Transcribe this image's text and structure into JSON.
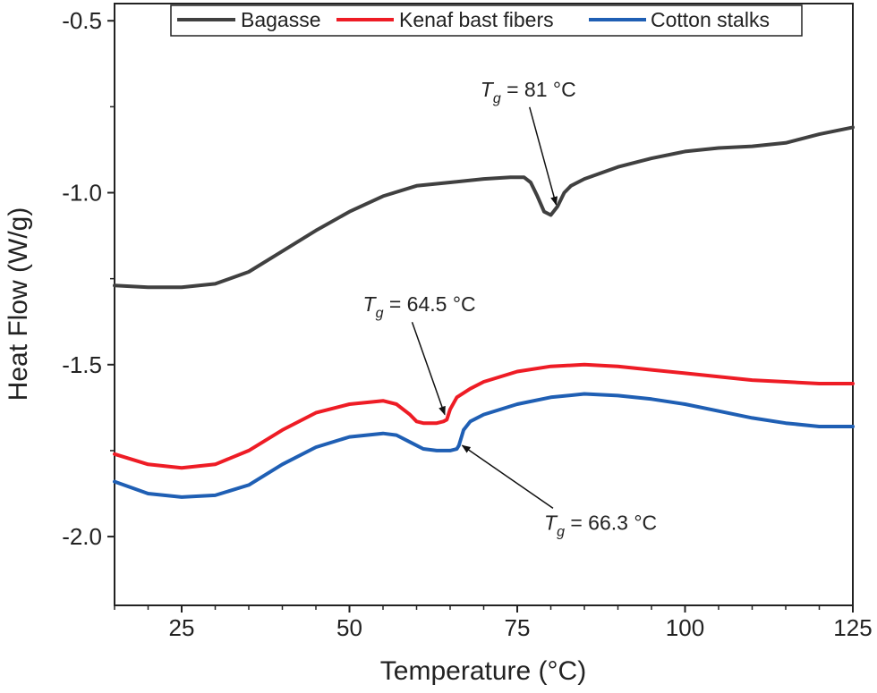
{
  "chart_data": {
    "type": "line",
    "title": "",
    "xlabel": "Temperature (°C)",
    "ylabel": "Heat Flow (W/g)",
    "xlim": [
      15,
      125
    ],
    "ylim": [
      -2.2,
      -0.45
    ],
    "xticks": [
      25,
      50,
      75,
      100,
      125
    ],
    "xtick_labels": [
      "25",
      "50",
      "75",
      "100",
      "125"
    ],
    "yticks": [
      -0.5,
      -1.0,
      -1.5,
      -2.0
    ],
    "ytick_labels": [
      "-0.5",
      "-1.0",
      "-1.5",
      "-2.0"
    ],
    "grid": false,
    "legend_position": "top",
    "series": [
      {
        "name": "Bagasse",
        "color": "#404040",
        "x": [
          15,
          20,
          25,
          30,
          35,
          40,
          45,
          50,
          55,
          60,
          65,
          70,
          74,
          76,
          77,
          78,
          79,
          80,
          81,
          82,
          83,
          85,
          90,
          95,
          100,
          105,
          110,
          115,
          120,
          125
        ],
        "y": [
          -1.27,
          -1.275,
          -1.275,
          -1.265,
          -1.23,
          -1.17,
          -1.11,
          -1.055,
          -1.01,
          -0.98,
          -0.97,
          -0.96,
          -0.955,
          -0.955,
          -0.97,
          -1.01,
          -1.055,
          -1.065,
          -1.04,
          -1.0,
          -0.98,
          -0.96,
          -0.925,
          -0.9,
          -0.88,
          -0.87,
          -0.865,
          -0.855,
          -0.83,
          -0.81
        ]
      },
      {
        "name": "Kenaf bast fibers",
        "color": "#ee1c25",
        "x": [
          15,
          20,
          25,
          30,
          35,
          40,
          45,
          50,
          55,
          57,
          59,
          60,
          61,
          62,
          63,
          64,
          64.5,
          65,
          66,
          68,
          70,
          75,
          80,
          85,
          90,
          95,
          100,
          105,
          110,
          115,
          120,
          125
        ],
        "y": [
          -1.76,
          -1.79,
          -1.8,
          -1.79,
          -1.75,
          -1.69,
          -1.64,
          -1.615,
          -1.605,
          -1.615,
          -1.645,
          -1.665,
          -1.67,
          -1.67,
          -1.67,
          -1.665,
          -1.66,
          -1.63,
          -1.595,
          -1.57,
          -1.55,
          -1.52,
          -1.505,
          -1.5,
          -1.505,
          -1.515,
          -1.525,
          -1.535,
          -1.545,
          -1.55,
          -1.555,
          -1.555
        ]
      },
      {
        "name": "Cotton stalks",
        "color": "#1f5fb4",
        "x": [
          15,
          20,
          25,
          30,
          35,
          40,
          45,
          50,
          55,
          57,
          59,
          61,
          63,
          65,
          66,
          66.3,
          67,
          68,
          70,
          75,
          80,
          85,
          90,
          95,
          100,
          105,
          110,
          115,
          120,
          125
        ],
        "y": [
          -1.84,
          -1.875,
          -1.885,
          -1.88,
          -1.85,
          -1.79,
          -1.74,
          -1.71,
          -1.7,
          -1.705,
          -1.725,
          -1.745,
          -1.75,
          -1.75,
          -1.745,
          -1.735,
          -1.69,
          -1.665,
          -1.645,
          -1.615,
          -1.595,
          -1.585,
          -1.59,
          -1.6,
          -1.615,
          -1.635,
          -1.655,
          -1.67,
          -1.68,
          -1.68
        ]
      }
    ],
    "annotations": [
      {
        "label": "T",
        "sub": "g",
        "text": " = 81 °C",
        "target_x": 80.8,
        "target_y": -1.035,
        "text_x": 69.5,
        "text_y": -0.72
      },
      {
        "label": "T",
        "sub": "g",
        "text": " = 64.5 °C",
        "target_x": 64.2,
        "target_y": -1.645,
        "text_x": 52,
        "text_y": -1.345
      },
      {
        "label": "T",
        "sub": "g",
        "text": " = 66.3 °C",
        "target_x": 66.8,
        "target_y": -1.735,
        "text_x": 79,
        "text_y": -1.98
      }
    ]
  }
}
